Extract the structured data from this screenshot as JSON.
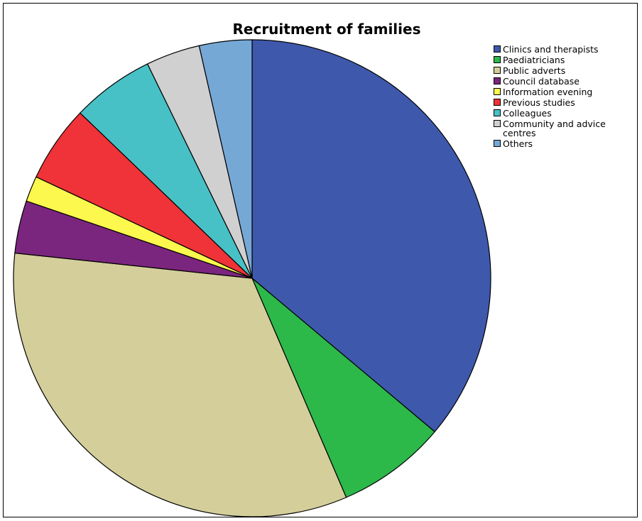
{
  "chart_data": {
    "type": "pie",
    "title": "Recruitment of families",
    "legend_position": "top-right",
    "start_angle_deg": 0,
    "direction": "clockwise",
    "slices": [
      {
        "label": "Clinics and therapists",
        "value": 37.5,
        "color": "#3E58AC"
      },
      {
        "label": "Paediatricians",
        "value": 7.7,
        "color": "#2DB84A"
      },
      {
        "label": "Public adverts",
        "value": 34.4,
        "color": "#D4CE9B"
      },
      {
        "label": "Council database",
        "value": 3.7,
        "color": "#7B267E"
      },
      {
        "label": "Information evening",
        "value": 1.8,
        "color": "#FCF84D"
      },
      {
        "label": "Previous studies",
        "value": 5.4,
        "color": "#EF3338"
      },
      {
        "label": "Colleagues",
        "value": 5.8,
        "color": "#48C1C6"
      },
      {
        "label": "Community and advice centres",
        "value": 3.8,
        "color": "#D0D0D0"
      },
      {
        "label": "Others",
        "value": 3.7,
        "color": "#76A8D6"
      }
    ]
  }
}
